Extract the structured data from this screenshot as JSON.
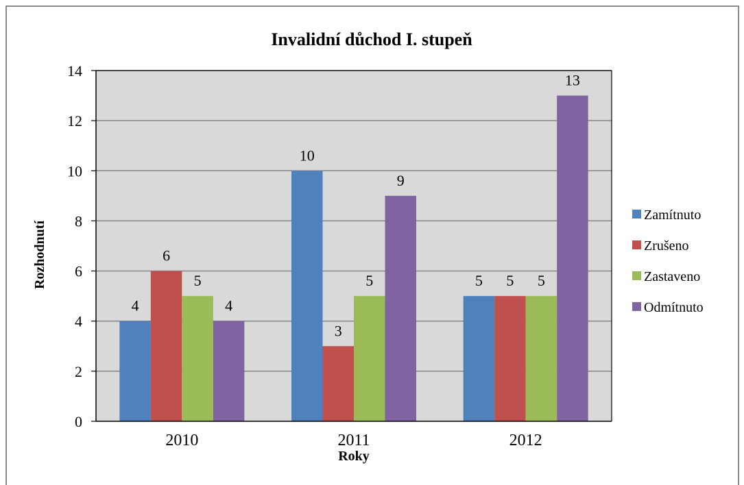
{
  "chart_data": {
    "type": "bar",
    "title": "Invalidní důchod I. stupeň",
    "xlabel": "Roky",
    "ylabel": "Rozhodnutí",
    "categories": [
      "2010",
      "2011",
      "2012"
    ],
    "ylim": [
      0,
      14
    ],
    "yticks": [
      0,
      2,
      4,
      6,
      8,
      10,
      12,
      14
    ],
    "grid": true,
    "legend_position": "right",
    "series": [
      {
        "name": "Zamítnuto",
        "color": "#4f81bd",
        "values": [
          4,
          10,
          5
        ]
      },
      {
        "name": "Zrušeno",
        "color": "#c0504d",
        "values": [
          6,
          3,
          5
        ]
      },
      {
        "name": "Zastaveno",
        "color": "#9bbb59",
        "values": [
          5,
          5,
          5
        ]
      },
      {
        "name": "Odmítnuto",
        "color": "#8064a2",
        "values": [
          4,
          9,
          13
        ]
      }
    ],
    "plot_background": "#d9d9d9"
  }
}
